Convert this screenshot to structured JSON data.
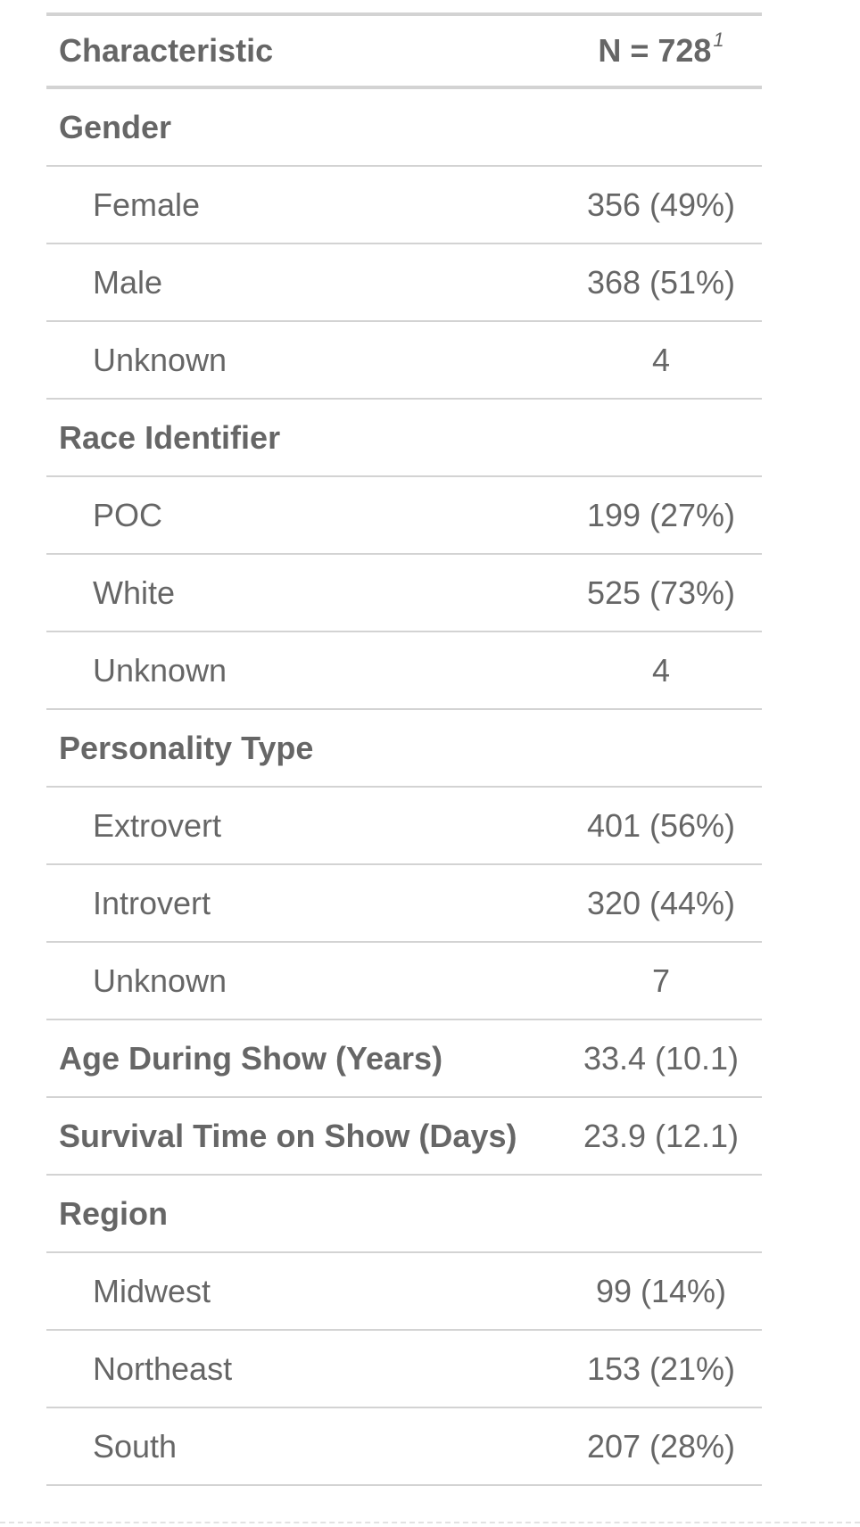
{
  "header": {
    "characteristic": "Characteristic",
    "n_label": "N = 728",
    "footnote_mark": "1"
  },
  "rows": [
    {
      "label": "Gender",
      "value": ""
    },
    {
      "label": "Female",
      "value": "356 (49%)"
    },
    {
      "label": "Male",
      "value": "368 (51%)"
    },
    {
      "label": "Unknown",
      "value": "4"
    },
    {
      "label": "Race Identifier",
      "value": ""
    },
    {
      "label": "POC",
      "value": "199 (27%)"
    },
    {
      "label": "White",
      "value": "525 (73%)"
    },
    {
      "label": "Unknown",
      "value": "4"
    },
    {
      "label": "Personality Type",
      "value": ""
    },
    {
      "label": "Extrovert",
      "value": "401 (56%)"
    },
    {
      "label": "Introvert",
      "value": "320 (44%)"
    },
    {
      "label": "Unknown",
      "value": "7"
    },
    {
      "label": "Age During Show (Years)",
      "value": "33.4 (10.1)"
    },
    {
      "label": "Survival Time on Show (Days)",
      "value": "23.9 (12.1)"
    },
    {
      "label": "Region",
      "value": ""
    },
    {
      "label": "Midwest",
      "value": "99 (14%)"
    },
    {
      "label": "Northeast",
      "value": "153 (21%)"
    },
    {
      "label": "South",
      "value": "207 (28%)"
    }
  ]
}
